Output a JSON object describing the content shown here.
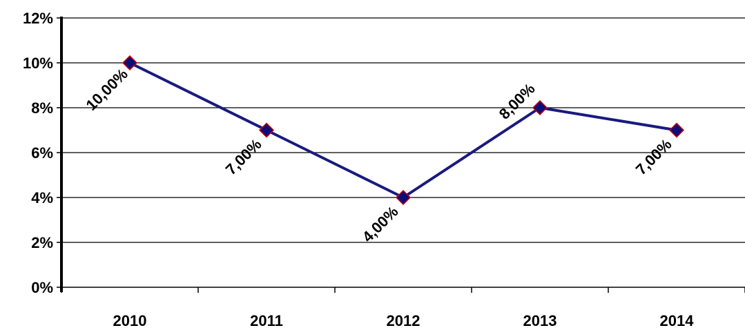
{
  "chart_data": {
    "type": "line",
    "categories": [
      "2010",
      "2011",
      "2012",
      "2013",
      "2014"
    ],
    "series": [
      {
        "values": [
          10,
          7,
          4,
          8,
          7
        ]
      }
    ],
    "data_labels": [
      "10,00%",
      "7,00%",
      "4,00%",
      "8,00%",
      "7,00%"
    ],
    "y_ticks": [
      "0%",
      "2%",
      "4%",
      "6%",
      "8%",
      "10%",
      "12%"
    ],
    "ylim": [
      0,
      12
    ],
    "grid": true,
    "colors": {
      "line": "#1a1a80",
      "marker_fill": "#0d0d7a",
      "marker_stroke": "#cc0000",
      "grid": "#000000"
    }
  }
}
